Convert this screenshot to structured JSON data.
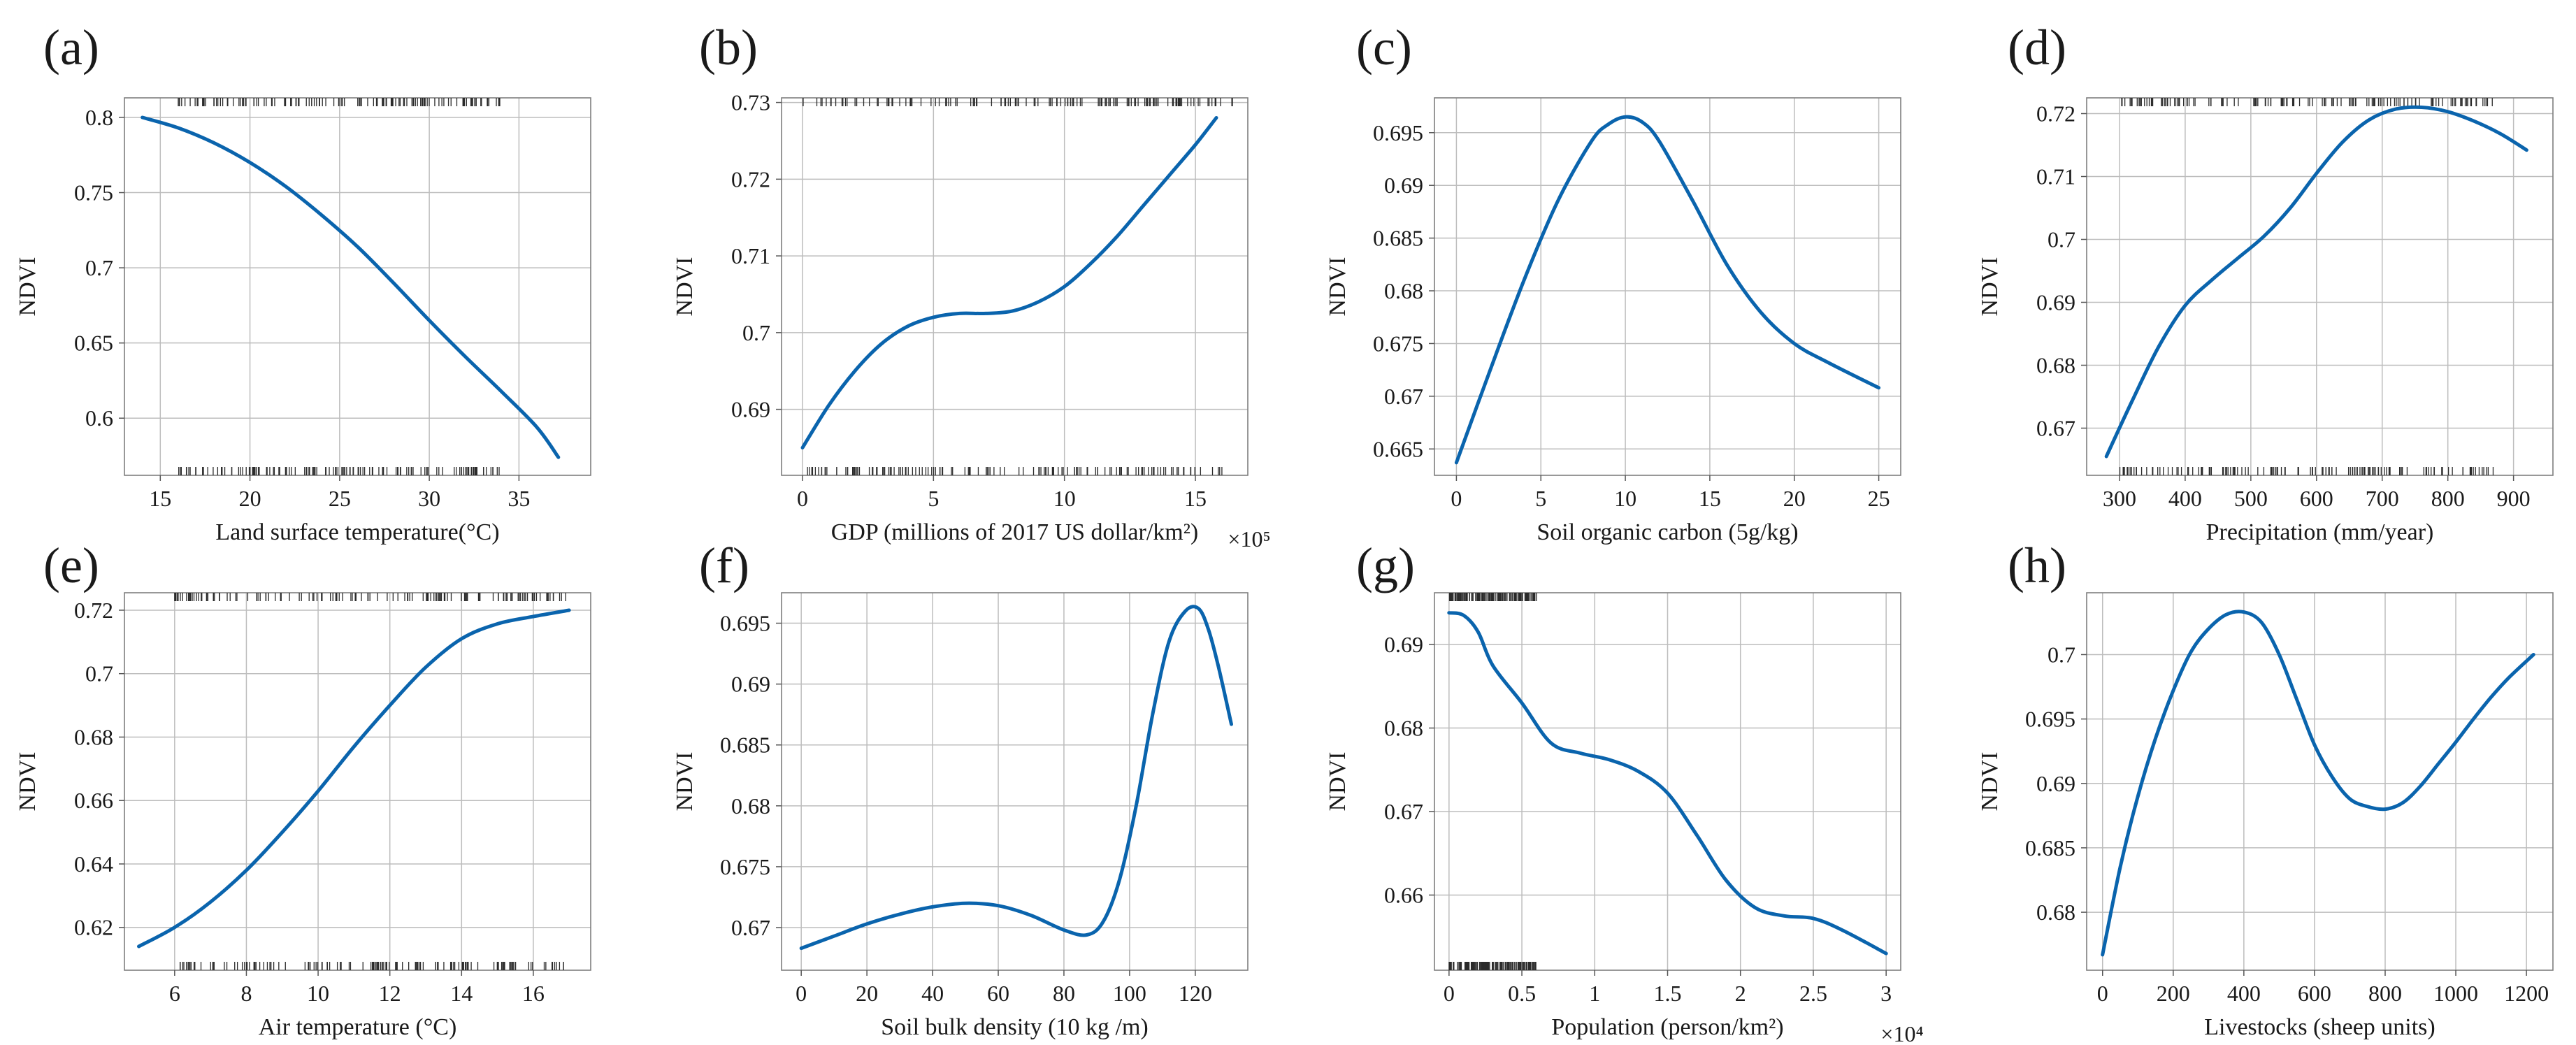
{
  "figure": {
    "y_axis_label": "NDVI",
    "line_color": "#0a64ad"
  },
  "chart_data": [
    {
      "id": "a",
      "panel_label": "(a)",
      "type": "line",
      "xlabel": "Land surface temperature(°C)",
      "ylabel": "NDVI",
      "xlim": [
        13,
        39
      ],
      "ylim": [
        0.562,
        0.813
      ],
      "xticks": [
        15,
        20,
        25,
        30,
        35
      ],
      "xtick_labels": [
        "15",
        "20",
        "25",
        "30",
        "35"
      ],
      "yticks": [
        0.6,
        0.65,
        0.7,
        0.75,
        0.8
      ],
      "ytick_labels": [
        "0.6",
        "0.65",
        "0.7",
        "0.75",
        "0.8"
      ],
      "x_exponent": "",
      "x": [
        14,
        16,
        18,
        20,
        22,
        24,
        26,
        28,
        30,
        32,
        34,
        36,
        37.2
      ],
      "y": [
        0.8,
        0.793,
        0.783,
        0.77,
        0.754,
        0.735,
        0.714,
        0.69,
        0.665,
        0.641,
        0.618,
        0.594,
        0.574
      ],
      "rug_range": [
        16,
        34
      ]
    },
    {
      "id": "b",
      "panel_label": "(b)",
      "type": "line",
      "xlabel": "GDP (millions of 2017 US dollar/km²)",
      "ylabel": "NDVI",
      "xlim": [
        -0.8,
        17
      ],
      "ylim": [
        0.6814,
        0.7306
      ],
      "xticks": [
        0,
        5,
        10,
        15
      ],
      "xtick_labels": [
        "0",
        "5",
        "10",
        "15"
      ],
      "yticks": [
        0.69,
        0.7,
        0.71,
        0.72,
        0.73
      ],
      "ytick_labels": [
        "0.69",
        "0.7",
        "0.71",
        "0.72",
        "0.73"
      ],
      "x_exponent": "×10⁵",
      "x": [
        0,
        1,
        2,
        3,
        4,
        5,
        6,
        7,
        8,
        9,
        10,
        11,
        12,
        13,
        14,
        15,
        15.8
      ],
      "y": [
        0.685,
        0.6905,
        0.695,
        0.6985,
        0.7008,
        0.702,
        0.7025,
        0.7025,
        0.7028,
        0.704,
        0.706,
        0.709,
        0.7125,
        0.7165,
        0.7205,
        0.7245,
        0.728
      ],
      "rug_range": [
        0,
        16.5
      ]
    },
    {
      "id": "c",
      "panel_label": "(c)",
      "type": "line",
      "xlabel": "Soil organic carbon (5g/kg)",
      "ylabel": "NDVI",
      "xlim": [
        -1.3,
        26.3
      ],
      "ylim": [
        0.6625,
        0.6983
      ],
      "xticks": [
        0,
        5,
        10,
        15,
        20,
        25
      ],
      "xtick_labels": [
        "0",
        "5",
        "10",
        "15",
        "20",
        "25"
      ],
      "yticks": [
        0.665,
        0.67,
        0.675,
        0.68,
        0.685,
        0.69,
        0.695
      ],
      "ytick_labels": [
        "0.665",
        "0.67",
        "0.675",
        "0.68",
        "0.685",
        "0.69",
        "0.695"
      ],
      "x_exponent": "",
      "x": [
        0,
        2,
        4,
        6,
        8,
        9,
        10,
        11,
        12,
        14,
        16,
        18,
        20,
        22,
        25
      ],
      "y": [
        0.6637,
        0.6725,
        0.681,
        0.6885,
        0.6942,
        0.6958,
        0.6965,
        0.696,
        0.6942,
        0.6885,
        0.6825,
        0.678,
        0.675,
        0.6732,
        0.6708
      ],
      "rug_range": null
    },
    {
      "id": "d",
      "panel_label": "(d)",
      "type": "line",
      "xlabel": "Precipitation (mm/year)",
      "ylabel": "NDVI",
      "xlim": [
        250,
        960
      ],
      "ylim": [
        0.6625,
        0.7225
      ],
      "xticks": [
        300,
        400,
        500,
        600,
        700,
        800,
        900
      ],
      "xtick_labels": [
        "300",
        "400",
        "500",
        "600",
        "700",
        "800",
        "900"
      ],
      "yticks": [
        0.67,
        0.68,
        0.69,
        0.7,
        0.71,
        0.72
      ],
      "ytick_labels": [
        "0.67",
        "0.68",
        "0.69",
        "0.7",
        "0.71",
        "0.72"
      ],
      "x_exponent": "",
      "x": [
        280,
        320,
        360,
        400,
        440,
        480,
        520,
        560,
        600,
        640,
        680,
        720,
        760,
        800,
        840,
        880,
        920
      ],
      "y": [
        0.6655,
        0.6745,
        0.683,
        0.6895,
        0.6935,
        0.697,
        0.7005,
        0.705,
        0.7105,
        0.7155,
        0.719,
        0.7207,
        0.721,
        0.7203,
        0.7188,
        0.7168,
        0.7142
      ],
      "rug_range": [
        300,
        870
      ]
    },
    {
      "id": "e",
      "panel_label": "(e)",
      "type": "line",
      "xlabel": "Air temperature (°C)",
      "ylabel": "NDVI",
      "xlim": [
        4.6,
        17.6
      ],
      "ylim": [
        0.6065,
        0.7255
      ],
      "xticks": [
        6,
        8,
        10,
        12,
        14,
        16
      ],
      "xtick_labels": [
        "6",
        "8",
        "10",
        "12",
        "14",
        "16"
      ],
      "yticks": [
        0.62,
        0.64,
        0.66,
        0.68,
        0.7,
        0.72
      ],
      "ytick_labels": [
        "0.62",
        "0.64",
        "0.66",
        "0.68",
        "0.7",
        "0.72"
      ],
      "x_exponent": "",
      "x": [
        5,
        6,
        7,
        8,
        9,
        10,
        11,
        12,
        13,
        14,
        15,
        16,
        17
      ],
      "y": [
        0.614,
        0.62,
        0.628,
        0.638,
        0.65,
        0.663,
        0.677,
        0.69,
        0.702,
        0.711,
        0.7157,
        0.718,
        0.72
      ],
      "rug_range": [
        6,
        17
      ]
    },
    {
      "id": "f",
      "panel_label": "(f)",
      "type": "line",
      "xlabel": "Soil bulk density (10 kg /m)",
      "ylabel": "NDVI",
      "xlim": [
        -6,
        136
      ],
      "ylim": [
        0.6665,
        0.6975
      ],
      "xticks": [
        0,
        20,
        40,
        60,
        80,
        100,
        120
      ],
      "xtick_labels": [
        "0",
        "20",
        "40",
        "60",
        "80",
        "100",
        "120"
      ],
      "yticks": [
        0.67,
        0.675,
        0.68,
        0.685,
        0.69,
        0.695
      ],
      "ytick_labels": [
        "0.67",
        "0.675",
        "0.68",
        "0.685",
        "0.69",
        "0.695"
      ],
      "x_exponent": "",
      "x": [
        0,
        10,
        20,
        30,
        40,
        50,
        60,
        70,
        80,
        87,
        92,
        97,
        102,
        107,
        112,
        117,
        121,
        124,
        127,
        131
      ],
      "y": [
        0.6683,
        0.6693,
        0.6703,
        0.6711,
        0.6717,
        0.672,
        0.6718,
        0.671,
        0.6698,
        0.6694,
        0.6705,
        0.674,
        0.68,
        0.6875,
        0.6935,
        0.696,
        0.6962,
        0.6945,
        0.6915,
        0.6867
      ],
      "rug_range": null
    },
    {
      "id": "g",
      "panel_label": "(g)",
      "type": "line",
      "xlabel": "Population (person/km²)",
      "ylabel": "NDVI",
      "xlim": [
        -0.1,
        3.1
      ],
      "ylim": [
        0.651,
        0.6962
      ],
      "xticks": [
        0,
        0.5,
        1,
        1.5,
        2,
        2.5,
        3
      ],
      "xtick_labels": [
        "0",
        "0.5",
        "1",
        "1.5",
        "2",
        "2.5",
        "3"
      ],
      "yticks": [
        0.66,
        0.67,
        0.68,
        0.69
      ],
      "ytick_labels": [
        "0.66",
        "0.67",
        "0.68",
        "0.69"
      ],
      "x_exponent": "×10⁴",
      "x": [
        0,
        0.1,
        0.2,
        0.3,
        0.5,
        0.7,
        0.9,
        1.1,
        1.3,
        1.5,
        1.7,
        1.9,
        2.1,
        2.3,
        2.5,
        2.7,
        3.0
      ],
      "y": [
        0.6938,
        0.6935,
        0.6915,
        0.6875,
        0.683,
        0.6782,
        0.677,
        0.6762,
        0.6748,
        0.6722,
        0.6672,
        0.6618,
        0.6585,
        0.6575,
        0.6572,
        0.6558,
        0.653
      ],
      "rug_range": [
        0,
        0.6
      ]
    },
    {
      "id": "h",
      "panel_label": "(h)",
      "type": "line",
      "xlabel": "Livestocks (sheep units)",
      "ylabel": "NDVI",
      "xlim": [
        -45,
        1275
      ],
      "ylim": [
        0.6755,
        0.7048
      ],
      "xticks": [
        0,
        200,
        400,
        600,
        800,
        1000,
        1200
      ],
      "xtick_labels": [
        "0",
        "200",
        "400",
        "600",
        "800",
        "1000",
        "1200"
      ],
      "yticks": [
        0.68,
        0.685,
        0.69,
        0.695,
        0.7
      ],
      "ytick_labels": [
        "0.68",
        "0.685",
        "0.69",
        "0.695",
        "0.7"
      ],
      "x_exponent": "",
      "x": [
        0,
        50,
        100,
        150,
        200,
        250,
        300,
        350,
        400,
        450,
        500,
        550,
        600,
        650,
        700,
        750,
        800,
        850,
        900,
        950,
        1000,
        1050,
        1100,
        1150,
        1220
      ],
      "y": [
        0.6767,
        0.6835,
        0.689,
        0.6935,
        0.6972,
        0.7002,
        0.702,
        0.7031,
        0.7033,
        0.7025,
        0.7,
        0.6965,
        0.693,
        0.6905,
        0.6888,
        0.6882,
        0.688,
        0.6885,
        0.6898,
        0.6915,
        0.6932,
        0.695,
        0.6967,
        0.6982,
        0.7
      ]
    }
  ]
}
